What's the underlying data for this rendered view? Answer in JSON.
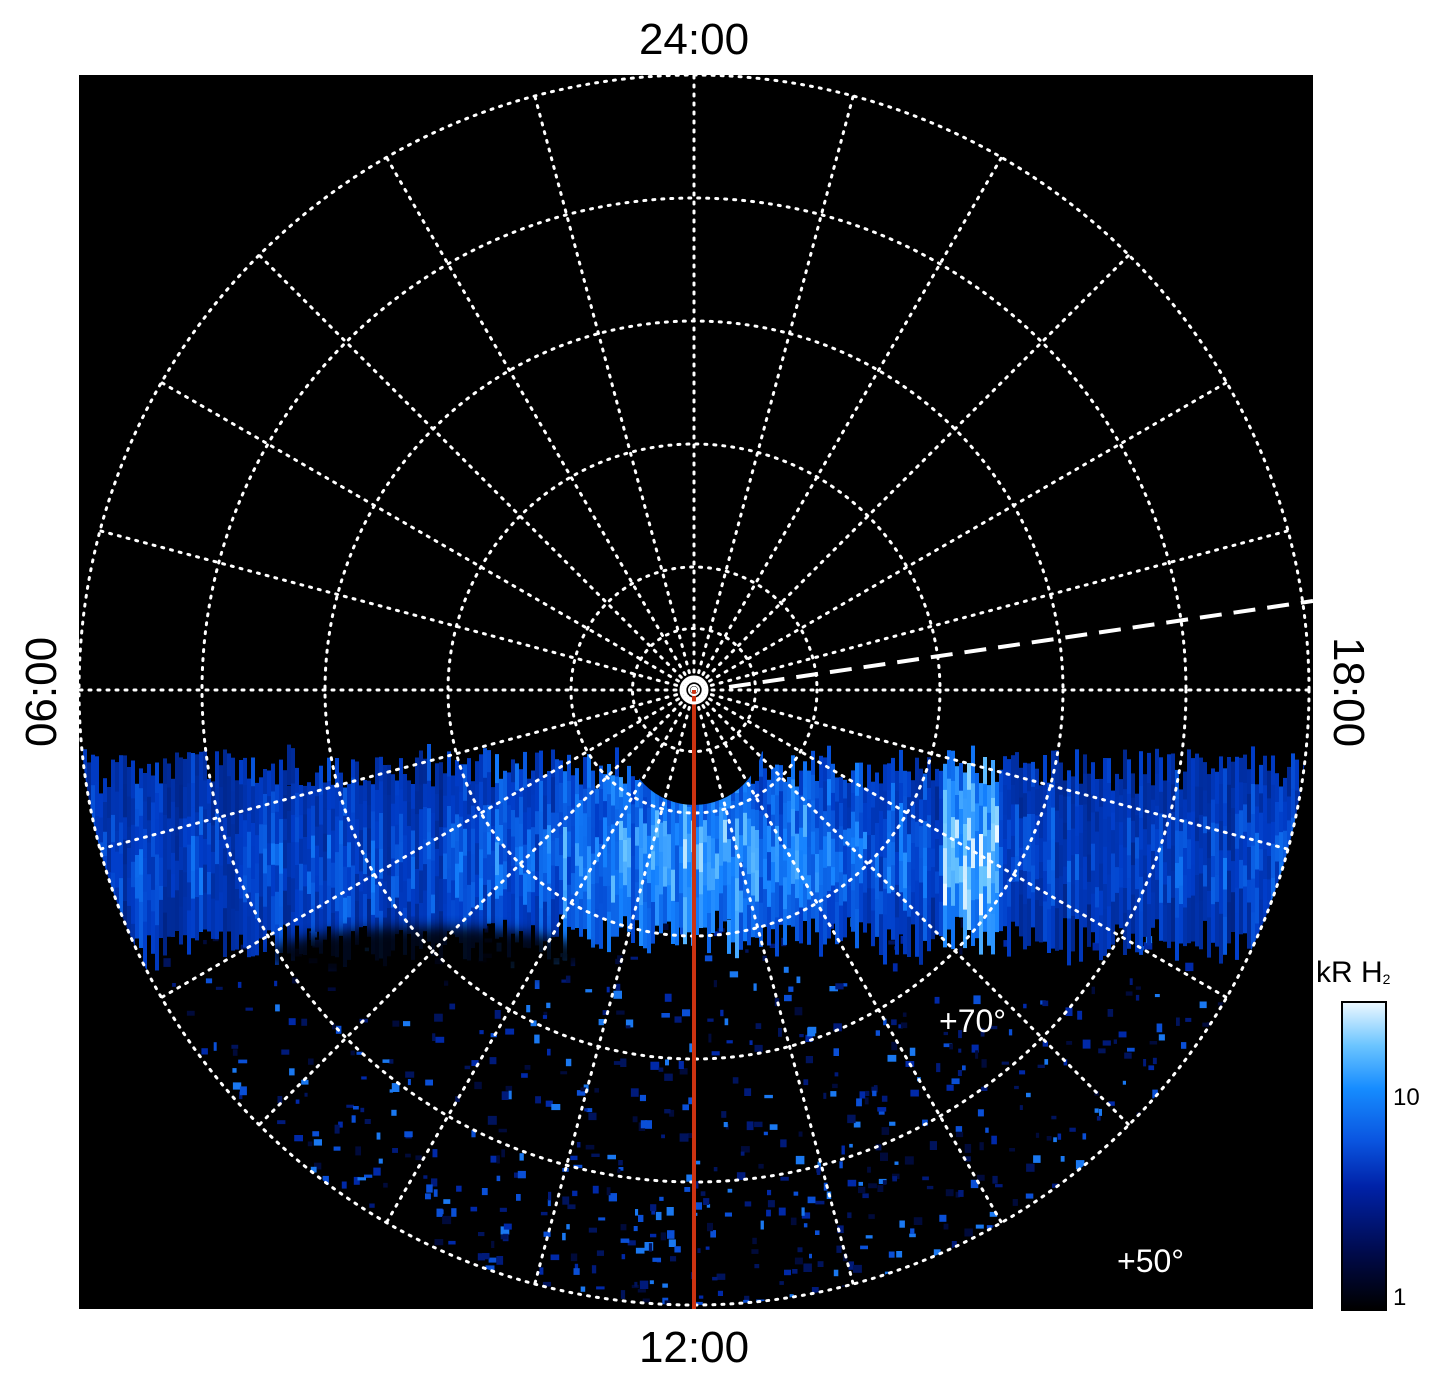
{
  "chart_data": {
    "type": "heatmap",
    "projection": "polar",
    "title": "",
    "local_time_labels": {
      "top": "24:00",
      "bottom": "12:00",
      "left": "06:00",
      "right": "18:00"
    },
    "latitude_labels": [
      "+70°",
      "+50°"
    ],
    "latitude_circles_deg": [
      85,
      80,
      70,
      60,
      50,
      40
    ],
    "meridian_spacing_hours": 1,
    "colorbar": {
      "title_main": "kR H",
      "title_sub": "2",
      "scale": "log",
      "ticks": [
        "10",
        "1"
      ],
      "range": [
        1,
        25
      ]
    },
    "colors": {
      "background": "#000000",
      "grid": "#ffffff",
      "meridian_line": "#cc3311",
      "emission_low": "#00135c",
      "emission_mid": "#1a8cff",
      "emission_high": "#eaf7ff"
    },
    "grid": true
  }
}
